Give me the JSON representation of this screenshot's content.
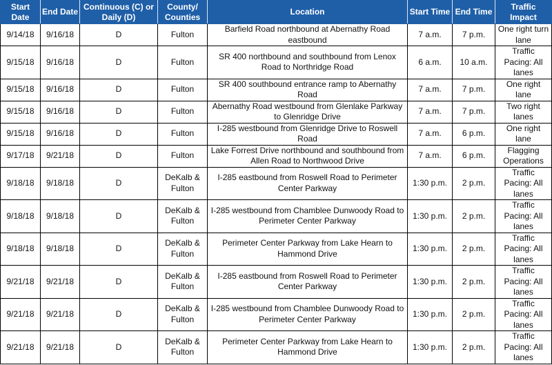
{
  "headers": [
    "Start Date",
    "End Date",
    "Continuous (C) or Daily (D)",
    "County/ Counties",
    "Location",
    "Start Time",
    "End Time",
    "Traffic Impact"
  ],
  "rows": [
    {
      "start": "9/14/18",
      "end": "9/16/18",
      "type": "D",
      "county": "Fulton",
      "location": "Barfield Road northbound at Abernathy Road eastbound",
      "start_time": "7 a.m.",
      "end_time": "7 p.m.",
      "impact": "One right turn lane",
      "tall": false
    },
    {
      "start": "9/15/18",
      "end": "9/16/18",
      "type": "D",
      "county": "Fulton",
      "location": "SR 400 northbound and southbound from Lenox Road to Northridge Road",
      "start_time": "6 a.m.",
      "end_time": "10 a.m.",
      "impact": "Traffic Pacing: All lanes",
      "tall": true
    },
    {
      "start": "9/15/18",
      "end": "9/16/18",
      "type": "D",
      "county": "Fulton",
      "location": "SR 400 southbound entrance ramp to Abernathy Road",
      "start_time": "7 a.m.",
      "end_time": "7 p.m.",
      "impact": "One right lane",
      "tall": false
    },
    {
      "start": "9/15/18",
      "end": "9/16/18",
      "type": "D",
      "county": "Fulton",
      "location": "Abernathy Road westbound from Glenlake Parkway to Glenridge Drive",
      "start_time": "7 a.m.",
      "end_time": "7 p.m.",
      "impact": "Two right lanes",
      "tall": false
    },
    {
      "start": "9/15/18",
      "end": "9/16/18",
      "type": "D",
      "county": "Fulton",
      "location": "I-285 westbound from Glenridge Drive to Roswell Road",
      "start_time": "7 a.m.",
      "end_time": "6 p.m.",
      "impact": "One right lane",
      "tall": false
    },
    {
      "start": "9/17/18",
      "end": "9/21/18",
      "type": "D",
      "county": "Fulton",
      "location": "Lake Forrest Drive northbound and southbound from Allen Road to Northwood Drive",
      "start_time": "7 a.m.",
      "end_time": "6 p.m.",
      "impact": "Flagging Operations",
      "tall": false
    },
    {
      "start": "9/18/18",
      "end": "9/18/18",
      "type": "D",
      "county": "DeKalb & Fulton",
      "location": "I-285 eastbound from Roswell Road to Perimeter Center Parkway",
      "start_time": "1:30 p.m.",
      "end_time": "2 p.m.",
      "impact": "Traffic Pacing: All lanes",
      "tall": true
    },
    {
      "start": "9/18/18",
      "end": "9/18/18",
      "type": "D",
      "county": "DeKalb & Fulton",
      "location": "I-285 westbound from Chamblee Dunwoody Road to Perimeter Center Parkway",
      "start_time": "1:30 p.m.",
      "end_time": "2 p.m.",
      "impact": "Traffic Pacing: All lanes",
      "tall": true
    },
    {
      "start": "9/18/18",
      "end": "9/18/18",
      "type": "D",
      "county": "DeKalb & Fulton",
      "location": "Perimeter Center Parkway from Lake Hearn to Hammond Drive",
      "start_time": "1:30 p.m.",
      "end_time": "2 p.m.",
      "impact": "Traffic Pacing: All lanes",
      "tall": true
    },
    {
      "start": "9/21/18",
      "end": "9/21/18",
      "type": "D",
      "county": "DeKalb & Fulton",
      "location": "I-285 eastbound from Roswell Road to Perimeter Center Parkway",
      "start_time": "1:30 p.m.",
      "end_time": "2 p.m.",
      "impact": "Traffic Pacing: All lanes",
      "tall": true
    },
    {
      "start": "9/21/18",
      "end": "9/21/18",
      "type": "D",
      "county": "DeKalb & Fulton",
      "location": "I-285 westbound from Chamblee Dunwoody Road to Perimeter Center Parkway",
      "start_time": "1:30 p.m.",
      "end_time": "2 p.m.",
      "impact": "Traffic Pacing: All lanes",
      "tall": true
    },
    {
      "start": "9/21/18",
      "end": "9/21/18",
      "type": "D",
      "county": "DeKalb & Fulton",
      "location": "Perimeter Center Parkway from Lake Hearn to Hammond Drive",
      "start_time": "1:30 p.m.",
      "end_time": "2 p.m.",
      "impact": "Traffic Pacing: All lanes",
      "tall": true
    }
  ],
  "colors": {
    "header_bg": "#1f5fa8",
    "header_text": "#ffffff"
  }
}
